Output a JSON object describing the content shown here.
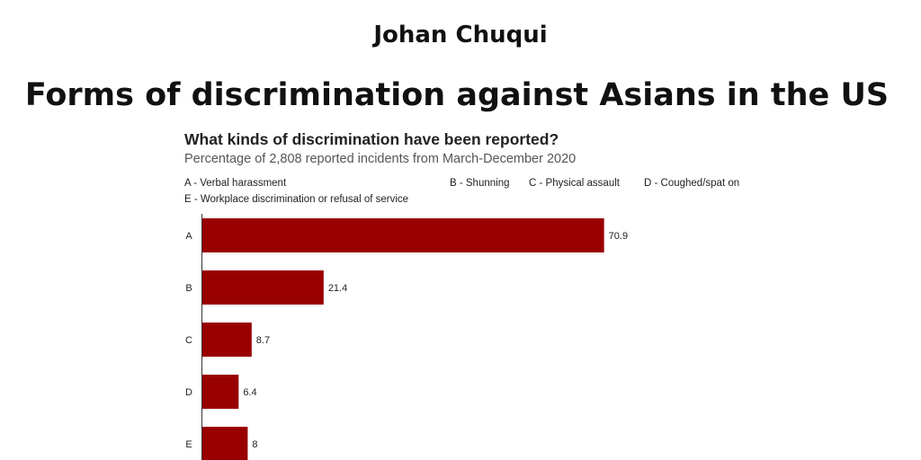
{
  "header": {
    "author": "Johan Chuqui",
    "heading": "Forms of discrimination against Asians in the US"
  },
  "chart_data": {
    "type": "bar",
    "orientation": "horizontal",
    "title": "What kinds of discrimination have been reported?",
    "subtitle": "Percentage of 2,808 reported incidents from March-December 2020",
    "annotations": [
      "A - Verbal harassment",
      "B - Shunning",
      "C - Physical assault",
      "D - Coughed/spat on",
      "E - Workplace discrimination or refusal of service"
    ],
    "categories": [
      "A",
      "B",
      "C",
      "D",
      "E"
    ],
    "values": [
      70.9,
      21.4,
      8.7,
      6.4,
      8
    ],
    "color": "#990000"
  }
}
